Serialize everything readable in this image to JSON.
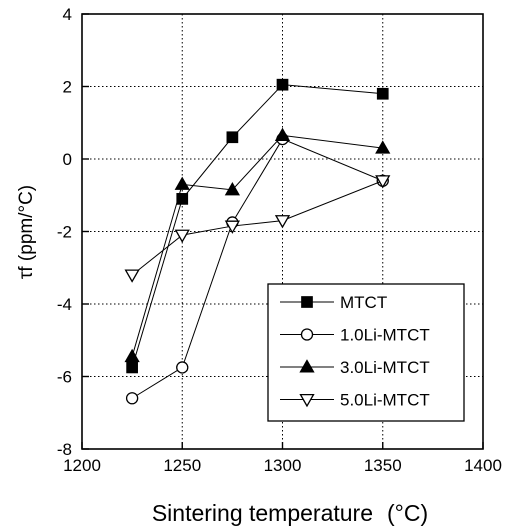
{
  "chart_data": {
    "type": "line",
    "title": "",
    "xlabel": "Sintering temperature",
    "xunit": "(°C)",
    "ylabel": "τf (ppm/°C)",
    "xlim": [
      1200,
      1400
    ],
    "ylim": [
      -8,
      4
    ],
    "xticks": [
      1200,
      1250,
      1300,
      1350,
      1400
    ],
    "yticks": [
      -8,
      -6,
      -4,
      -2,
      0,
      2,
      4
    ],
    "grid": true,
    "legend_position": "lower-right",
    "series": [
      {
        "name": "MTCT",
        "marker": "square-filled",
        "x": [
          1225,
          1250,
          1275,
          1300,
          1350
        ],
        "y": [
          -5.75,
          -1.1,
          0.6,
          2.05,
          1.8
        ]
      },
      {
        "name": "1.0Li-MTCT",
        "marker": "circle-open",
        "x": [
          1225,
          1250,
          1275,
          1300,
          1350
        ],
        "y": [
          -6.6,
          -5.75,
          -1.75,
          0.55,
          -0.6
        ]
      },
      {
        "name": "3.0Li-MTCT",
        "marker": "triangle-up-filled",
        "x": [
          1225,
          1250,
          1275,
          1300,
          1350
        ],
        "y": [
          -5.45,
          -0.7,
          -0.85,
          0.65,
          0.3
        ]
      },
      {
        "name": "5.0Li-MTCT",
        "marker": "triangle-down-open",
        "x": [
          1225,
          1250,
          1275,
          1300,
          1350
        ],
        "y": [
          -3.2,
          -2.1,
          -1.85,
          -1.7,
          -0.6
        ]
      }
    ]
  }
}
